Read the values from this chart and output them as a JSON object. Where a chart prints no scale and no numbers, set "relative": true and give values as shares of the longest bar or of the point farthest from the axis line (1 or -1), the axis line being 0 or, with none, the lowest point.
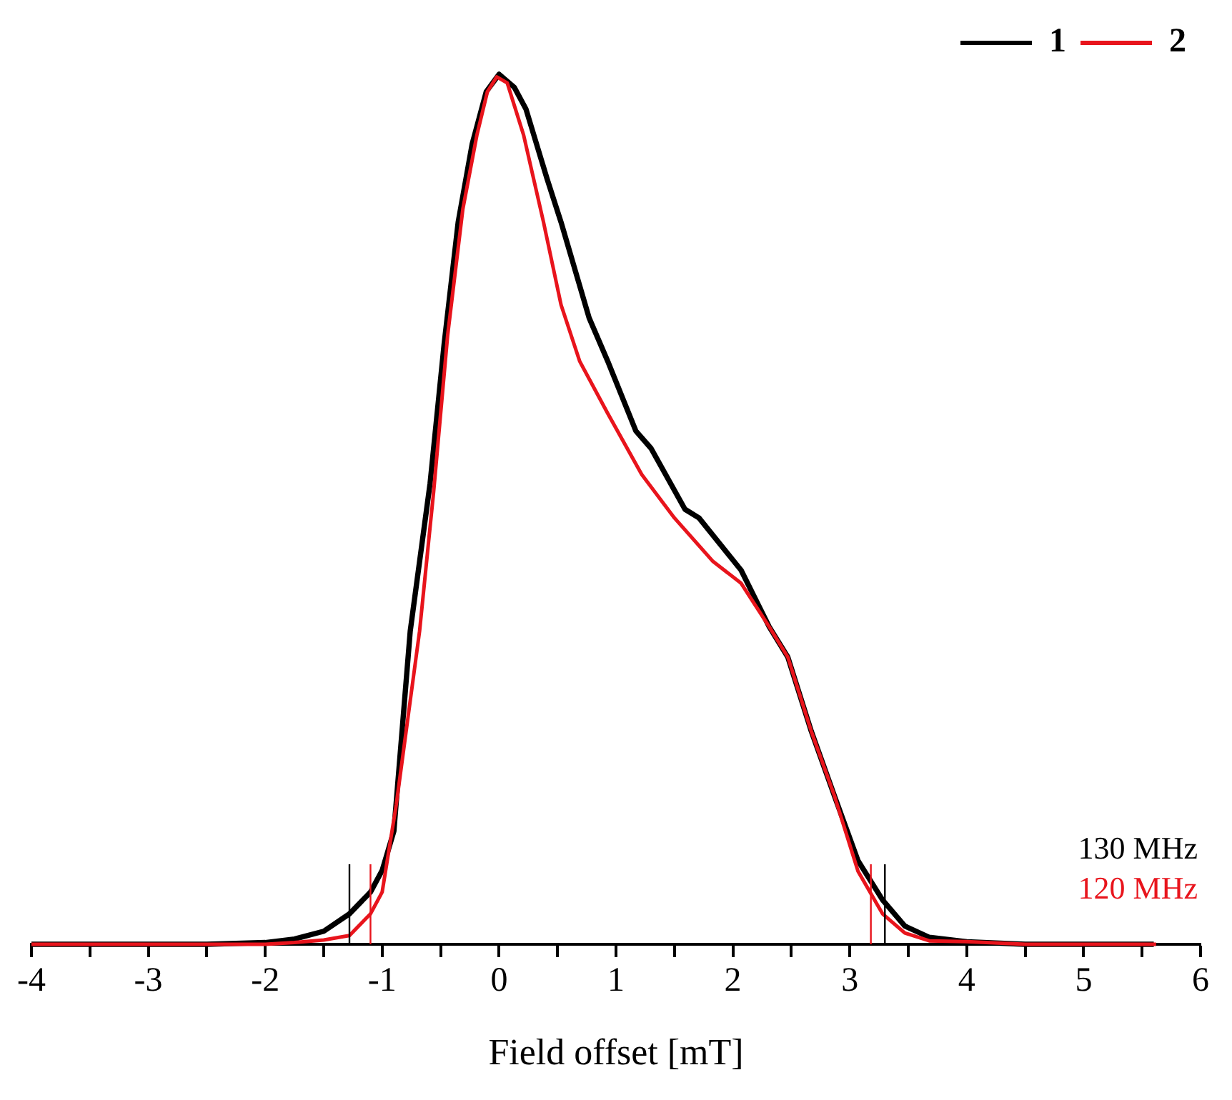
{
  "chart_data": {
    "type": "line",
    "xlabel": "Field offset [mT]",
    "relative": true,
    "legend": "top right",
    "grid": false,
    "marker": "none",
    "line_style": "solid",
    "xlim": [
      -4,
      6
    ],
    "xticks": [
      -4,
      {
        "value": -3.5,
        "label": null
      },
      -3,
      {
        "value": -2.5,
        "label": null
      },
      -2,
      {
        "value": -1.5,
        "label": null
      },
      -1,
      {
        "value": -0.5,
        "label": null
      },
      0,
      {
        "value": 0.5,
        "label": null
      },
      1,
      {
        "value": 1.5,
        "label": null
      },
      2,
      {
        "value": 2.5,
        "label": null
      },
      3,
      {
        "value": 3.5,
        "label": null
      },
      4,
      {
        "value": 4.5,
        "label": null
      },
      5,
      {
        "value": 5.5,
        "label": null
      },
      6
    ],
    "series": [
      {
        "name": "1",
        "color": "#000000",
        "x": [
          -4,
          -3,
          -2.5,
          -2,
          -1.75,
          -1.5,
          -1.28,
          -1.1,
          -1,
          -0.9,
          -0.76,
          -0.59,
          -0.47,
          -0.35,
          -0.23,
          -0.11,
          0,
          0.13,
          0.23,
          0.41,
          0.53,
          0.77,
          0.93,
          1.17,
          1.3,
          1.59,
          1.71,
          2.07,
          2.31,
          2.47,
          2.67,
          2.87,
          3.07,
          3.28,
          3.47,
          3.68,
          4,
          4.5,
          5,
          5.6
        ],
        "values": [
          0,
          0,
          0,
          0.002,
          0.006,
          0.015,
          0.035,
          0.06,
          0.085,
          0.13,
          0.36,
          0.53,
          0.69,
          0.83,
          0.92,
          0.98,
          1,
          0.985,
          0.96,
          0.88,
          0.83,
          0.72,
          0.67,
          0.59,
          0.57,
          0.5,
          0.49,
          0.43,
          0.365,
          0.33,
          0.245,
          0.17,
          0.096,
          0.051,
          0.021,
          0.008,
          0.003,
          0,
          0,
          0
        ]
      },
      {
        "name": "2",
        "color": "#e8141c",
        "x": [
          -4,
          -3,
          -2.5,
          -2,
          -1.75,
          -1.5,
          -1.28,
          -1.1,
          -1,
          -0.88,
          -0.68,
          -0.56,
          -0.44,
          -0.31,
          -0.19,
          -0.1,
          -0.02,
          0.07,
          0.21,
          0.38,
          0.53,
          0.69,
          0.93,
          1.22,
          1.5,
          1.83,
          2.07,
          2.31,
          2.47,
          2.67,
          2.87,
          3.07,
          3.28,
          3.47,
          3.68,
          4,
          4.5,
          5,
          5.62
        ],
        "values": [
          0,
          0,
          0,
          0,
          0.002,
          0.005,
          0.01,
          0.035,
          0.06,
          0.16,
          0.36,
          0.52,
          0.7,
          0.845,
          0.93,
          0.98,
          0.997,
          0.99,
          0.93,
          0.83,
          0.735,
          0.67,
          0.61,
          0.54,
          0.49,
          0.44,
          0.415,
          0.365,
          0.33,
          0.245,
          0.17,
          0.084,
          0.035,
          0.013,
          0.004,
          0.003,
          0,
          0,
          0
        ]
      }
    ],
    "ref_lines": [
      {
        "axis": "x",
        "value": -1.28,
        "color": "#000000"
      },
      {
        "axis": "x",
        "value": -1.1,
        "color": "#e8141c"
      },
      {
        "axis": "x",
        "value": 3.18,
        "color": "#e8141c"
      },
      {
        "axis": "x",
        "value": 3.3,
        "color": "#000000"
      }
    ],
    "annotations": [
      "130 MHz",
      "120 MHz"
    ]
  }
}
